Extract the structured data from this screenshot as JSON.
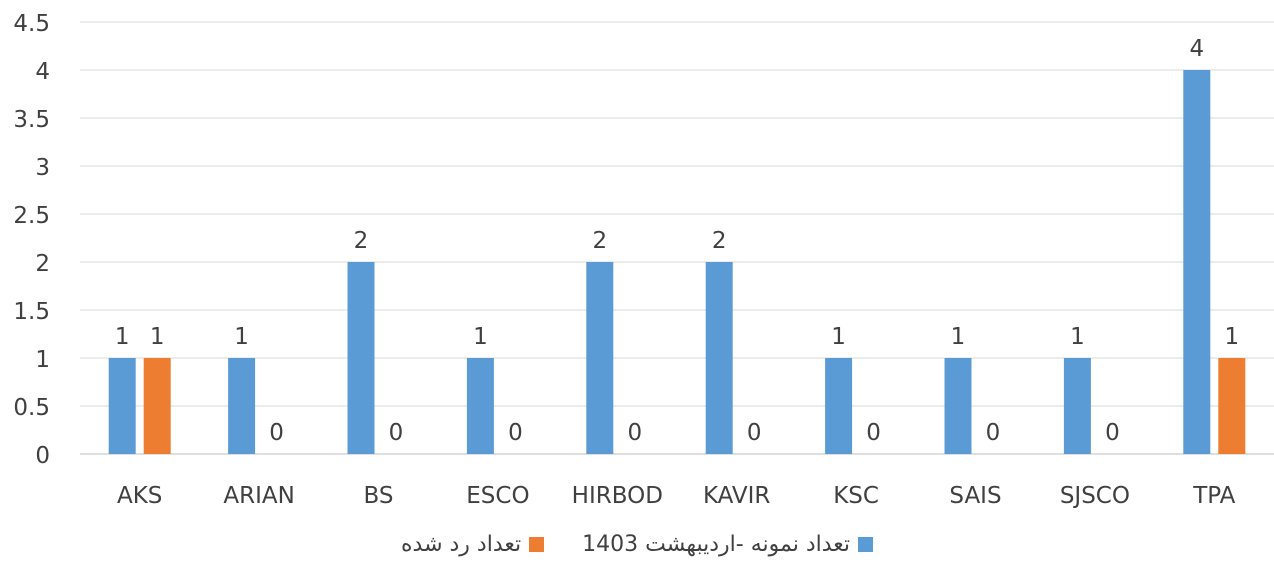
{
  "chart_data": {
    "type": "bar",
    "categories": [
      "AKS",
      "ARIAN",
      "BS",
      "ESCO",
      "HIRBOD",
      "KAVIR",
      "KSC",
      "SAIS",
      "SJSCO",
      "TPA"
    ],
    "series": [
      {
        "name": "تعداد نمونه -اردیبهشت 1403",
        "values": [
          1,
          1,
          2,
          1,
          2,
          2,
          1,
          1,
          1,
          4
        ],
        "color": "#5B9BD5"
      },
      {
        "name": "تعداد رد شده",
        "values": [
          1,
          0,
          0,
          0,
          0,
          0,
          0,
          0,
          0,
          1
        ],
        "color": "#ED7D31"
      }
    ],
    "yticks": [
      "0",
      "0.5",
      "1",
      "1.5",
      "2",
      "2.5",
      "3",
      "3.5",
      "4",
      "4.5"
    ],
    "ylim": [
      0,
      4.5
    ],
    "grid": true,
    "legend_position": "bottom"
  }
}
